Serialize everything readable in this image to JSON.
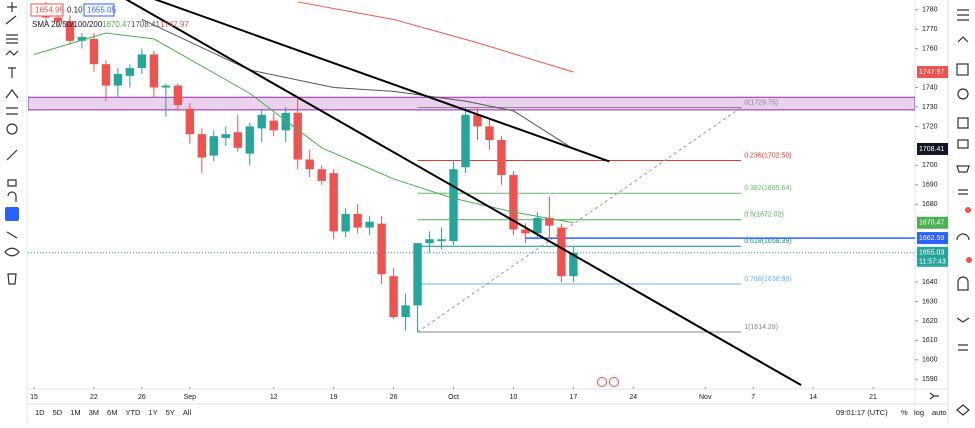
{
  "quote": {
    "bid": "1654.95",
    "spread": "0.10",
    "ask": "1655.05"
  },
  "chart_data": {
    "type": "candlestick",
    "indicator_label": "SMA 20/50/100/200",
    "up_color": "#26a69a",
    "down_color": "#ef5350",
    "candles": [
      {
        "open": 1781,
        "high": 1784,
        "low": 1773,
        "close": 1776
      },
      {
        "open": 1776,
        "high": 1778,
        "low": 1771,
        "close": 1774
      },
      {
        "open": 1774,
        "high": 1777,
        "low": 1762,
        "close": 1764
      },
      {
        "open": 1764,
        "high": 1768,
        "low": 1760,
        "close": 1766
      },
      {
        "open": 1765,
        "high": 1768,
        "low": 1748,
        "close": 1752
      },
      {
        "open": 1752,
        "high": 1754,
        "low": 1733,
        "close": 1741
      },
      {
        "open": 1741,
        "high": 1750,
        "low": 1735,
        "close": 1747
      },
      {
        "open": 1746,
        "high": 1752,
        "low": 1740,
        "close": 1750
      },
      {
        "open": 1750,
        "high": 1760,
        "low": 1747,
        "close": 1757
      },
      {
        "open": 1757,
        "high": 1759,
        "low": 1735,
        "close": 1740
      },
      {
        "open": 1740,
        "high": 1742,
        "low": 1725,
        "close": 1741
      },
      {
        "open": 1741,
        "high": 1742,
        "low": 1728,
        "close": 1731
      },
      {
        "open": 1729,
        "high": 1732,
        "low": 1711,
        "close": 1716
      },
      {
        "open": 1716,
        "high": 1719,
        "low": 1696,
        "close": 1704
      },
      {
        "open": 1705,
        "high": 1718,
        "low": 1702,
        "close": 1715
      },
      {
        "open": 1714,
        "high": 1720,
        "low": 1710,
        "close": 1716
      },
      {
        "open": 1717,
        "high": 1726,
        "low": 1707,
        "close": 1709
      },
      {
        "open": 1706,
        "high": 1722,
        "low": 1700,
        "close": 1720
      },
      {
        "open": 1719,
        "high": 1729,
        "low": 1712,
        "close": 1726
      },
      {
        "open": 1723,
        "high": 1727,
        "low": 1715,
        "close": 1718
      },
      {
        "open": 1718,
        "high": 1730,
        "low": 1712,
        "close": 1727
      },
      {
        "open": 1727,
        "high": 1735,
        "low": 1698,
        "close": 1703
      },
      {
        "open": 1703,
        "high": 1708,
        "low": 1694,
        "close": 1698
      },
      {
        "open": 1698,
        "high": 1700,
        "low": 1690,
        "close": 1692
      },
      {
        "open": 1696,
        "high": 1698,
        "low": 1662,
        "close": 1666
      },
      {
        "open": 1666,
        "high": 1678,
        "low": 1663,
        "close": 1675
      },
      {
        "open": 1675,
        "high": 1680,
        "low": 1665,
        "close": 1668
      },
      {
        "open": 1668,
        "high": 1674,
        "low": 1664,
        "close": 1671
      },
      {
        "open": 1670,
        "high": 1674,
        "low": 1639,
        "close": 1644
      },
      {
        "open": 1643,
        "high": 1647,
        "low": 1621,
        "close": 1622
      },
      {
        "open": 1622,
        "high": 1634,
        "low": 1615,
        "close": 1628
      },
      {
        "open": 1628,
        "high": 1660,
        "low": 1614.28,
        "close": 1660
      },
      {
        "open": 1660,
        "high": 1666,
        "low": 1655,
        "close": 1662
      },
      {
        "open": 1661,
        "high": 1668,
        "low": 1657,
        "close": 1662
      },
      {
        "open": 1661,
        "high": 1702,
        "low": 1659,
        "close": 1698
      },
      {
        "open": 1699,
        "high": 1729.75,
        "low": 1696,
        "close": 1726
      },
      {
        "open": 1726,
        "high": 1730,
        "low": 1713,
        "close": 1720
      },
      {
        "open": 1720,
        "high": 1724,
        "low": 1708,
        "close": 1713
      },
      {
        "open": 1713,
        "high": 1715,
        "low": 1690,
        "close": 1695
      },
      {
        "open": 1695,
        "high": 1697,
        "low": 1664,
        "close": 1667
      },
      {
        "open": 1667,
        "high": 1670,
        "low": 1660,
        "close": 1665
      },
      {
        "open": 1665,
        "high": 1676,
        "low": 1662,
        "close": 1673
      },
      {
        "open": 1673,
        "high": 1684,
        "low": 1662,
        "close": 1669
      },
      {
        "open": 1668,
        "high": 1670,
        "low": 1640,
        "close": 1643
      },
      {
        "open": 1643,
        "high": 1658,
        "low": 1640,
        "close": 1655.03
      }
    ],
    "series": [
      {
        "color": "#4caf50",
        "x": [
          -1,
          5,
          9,
          17,
          23,
          29,
          34,
          39,
          44
        ],
        "values": [
          1757,
          1768,
          1765,
          1737,
          1709,
          1693,
          1683,
          1676,
          1670.47
        ]
      },
      {
        "color": "#555555",
        "x": [
          8,
          17,
          24,
          29,
          35,
          39,
          44
        ],
        "values": [
          1775,
          1749,
          1740,
          1738,
          1733,
          1728,
          1708.41
        ]
      },
      {
        "color": "#ef5350",
        "x": [
          21,
          29,
          36,
          44
        ],
        "values": [
          1784,
          1775,
          1763,
          1747.97
        ]
      }
    ],
    "ylim": [
      1585,
      1785
    ],
    "yticks": [
      1590,
      1600,
      1610,
      1620,
      1630,
      1640,
      1680,
      1690,
      1700,
      1720,
      1730,
      1740,
      1760,
      1770,
      1780
    ],
    "xlim": [
      -1.5,
      72.5
    ],
    "xticks": [
      {
        "value": -1,
        "label": "15"
      },
      {
        "value": 4,
        "label": "22"
      },
      {
        "value": 8,
        "label": "26"
      },
      {
        "value": 12,
        "label": "Sep"
      },
      {
        "value": 19,
        "label": "12"
      },
      {
        "value": 24,
        "label": "19"
      },
      {
        "value": 29,
        "label": "26"
      },
      {
        "value": 34,
        "label": "Oct"
      },
      {
        "value": 39,
        "label": "10"
      },
      {
        "value": 44,
        "label": "17"
      },
      {
        "value": 49,
        "label": "24"
      },
      {
        "value": 55,
        "label": "Nov"
      },
      {
        "value": 59,
        "label": "7"
      },
      {
        "value": 64,
        "label": "14"
      },
      {
        "value": 69,
        "label": "21"
      }
    ],
    "trendlines": [
      {
        "x": [
          6.5,
          63
        ],
        "values": [
          1786,
          1587
        ]
      },
      {
        "x": [
          8.8,
          47
        ],
        "values": [
          1786,
          1702
        ]
      }
    ],
    "zone": [
      1728.5,
      1735
    ],
    "price_line": {
      "value": 1662.59,
      "x": 40
    },
    "fib": {
      "x": [
        31,
        58
      ],
      "anchor": [
        1614.28,
        1729.75
      ],
      "levels": [
        {
          "value": 1729.75,
          "label": "0(1729.75)",
          "color": "#888888"
        },
        {
          "value": 1702.5,
          "label": "0.236(1702.50)",
          "color": "#e53935"
        },
        {
          "value": 1685.64,
          "label": "0.382(1685.64)",
          "color": "#66bb6a"
        },
        {
          "value": 1672.02,
          "label": "0.5(1672.02)",
          "color": "#4caf50"
        },
        {
          "value": 1658.39,
          "label": "0.618(1658.39)",
          "color": "#009688"
        },
        {
          "value": 1638.99,
          "label": "0.786(1638.99)",
          "color": "#64b5f6"
        },
        {
          "value": 1614.28,
          "label": "1(1614.28)",
          "color": "#888888"
        }
      ]
    },
    "countdown": "11:57:43"
  },
  "bottom_bar": {
    "ranges": [
      "1D",
      "5D",
      "1M",
      "3M",
      "6M",
      "YTD",
      "1Y",
      "5Y",
      "All"
    ],
    "clock": "09:01:17 (UTC)",
    "options": [
      "%",
      "log",
      "auto"
    ]
  }
}
